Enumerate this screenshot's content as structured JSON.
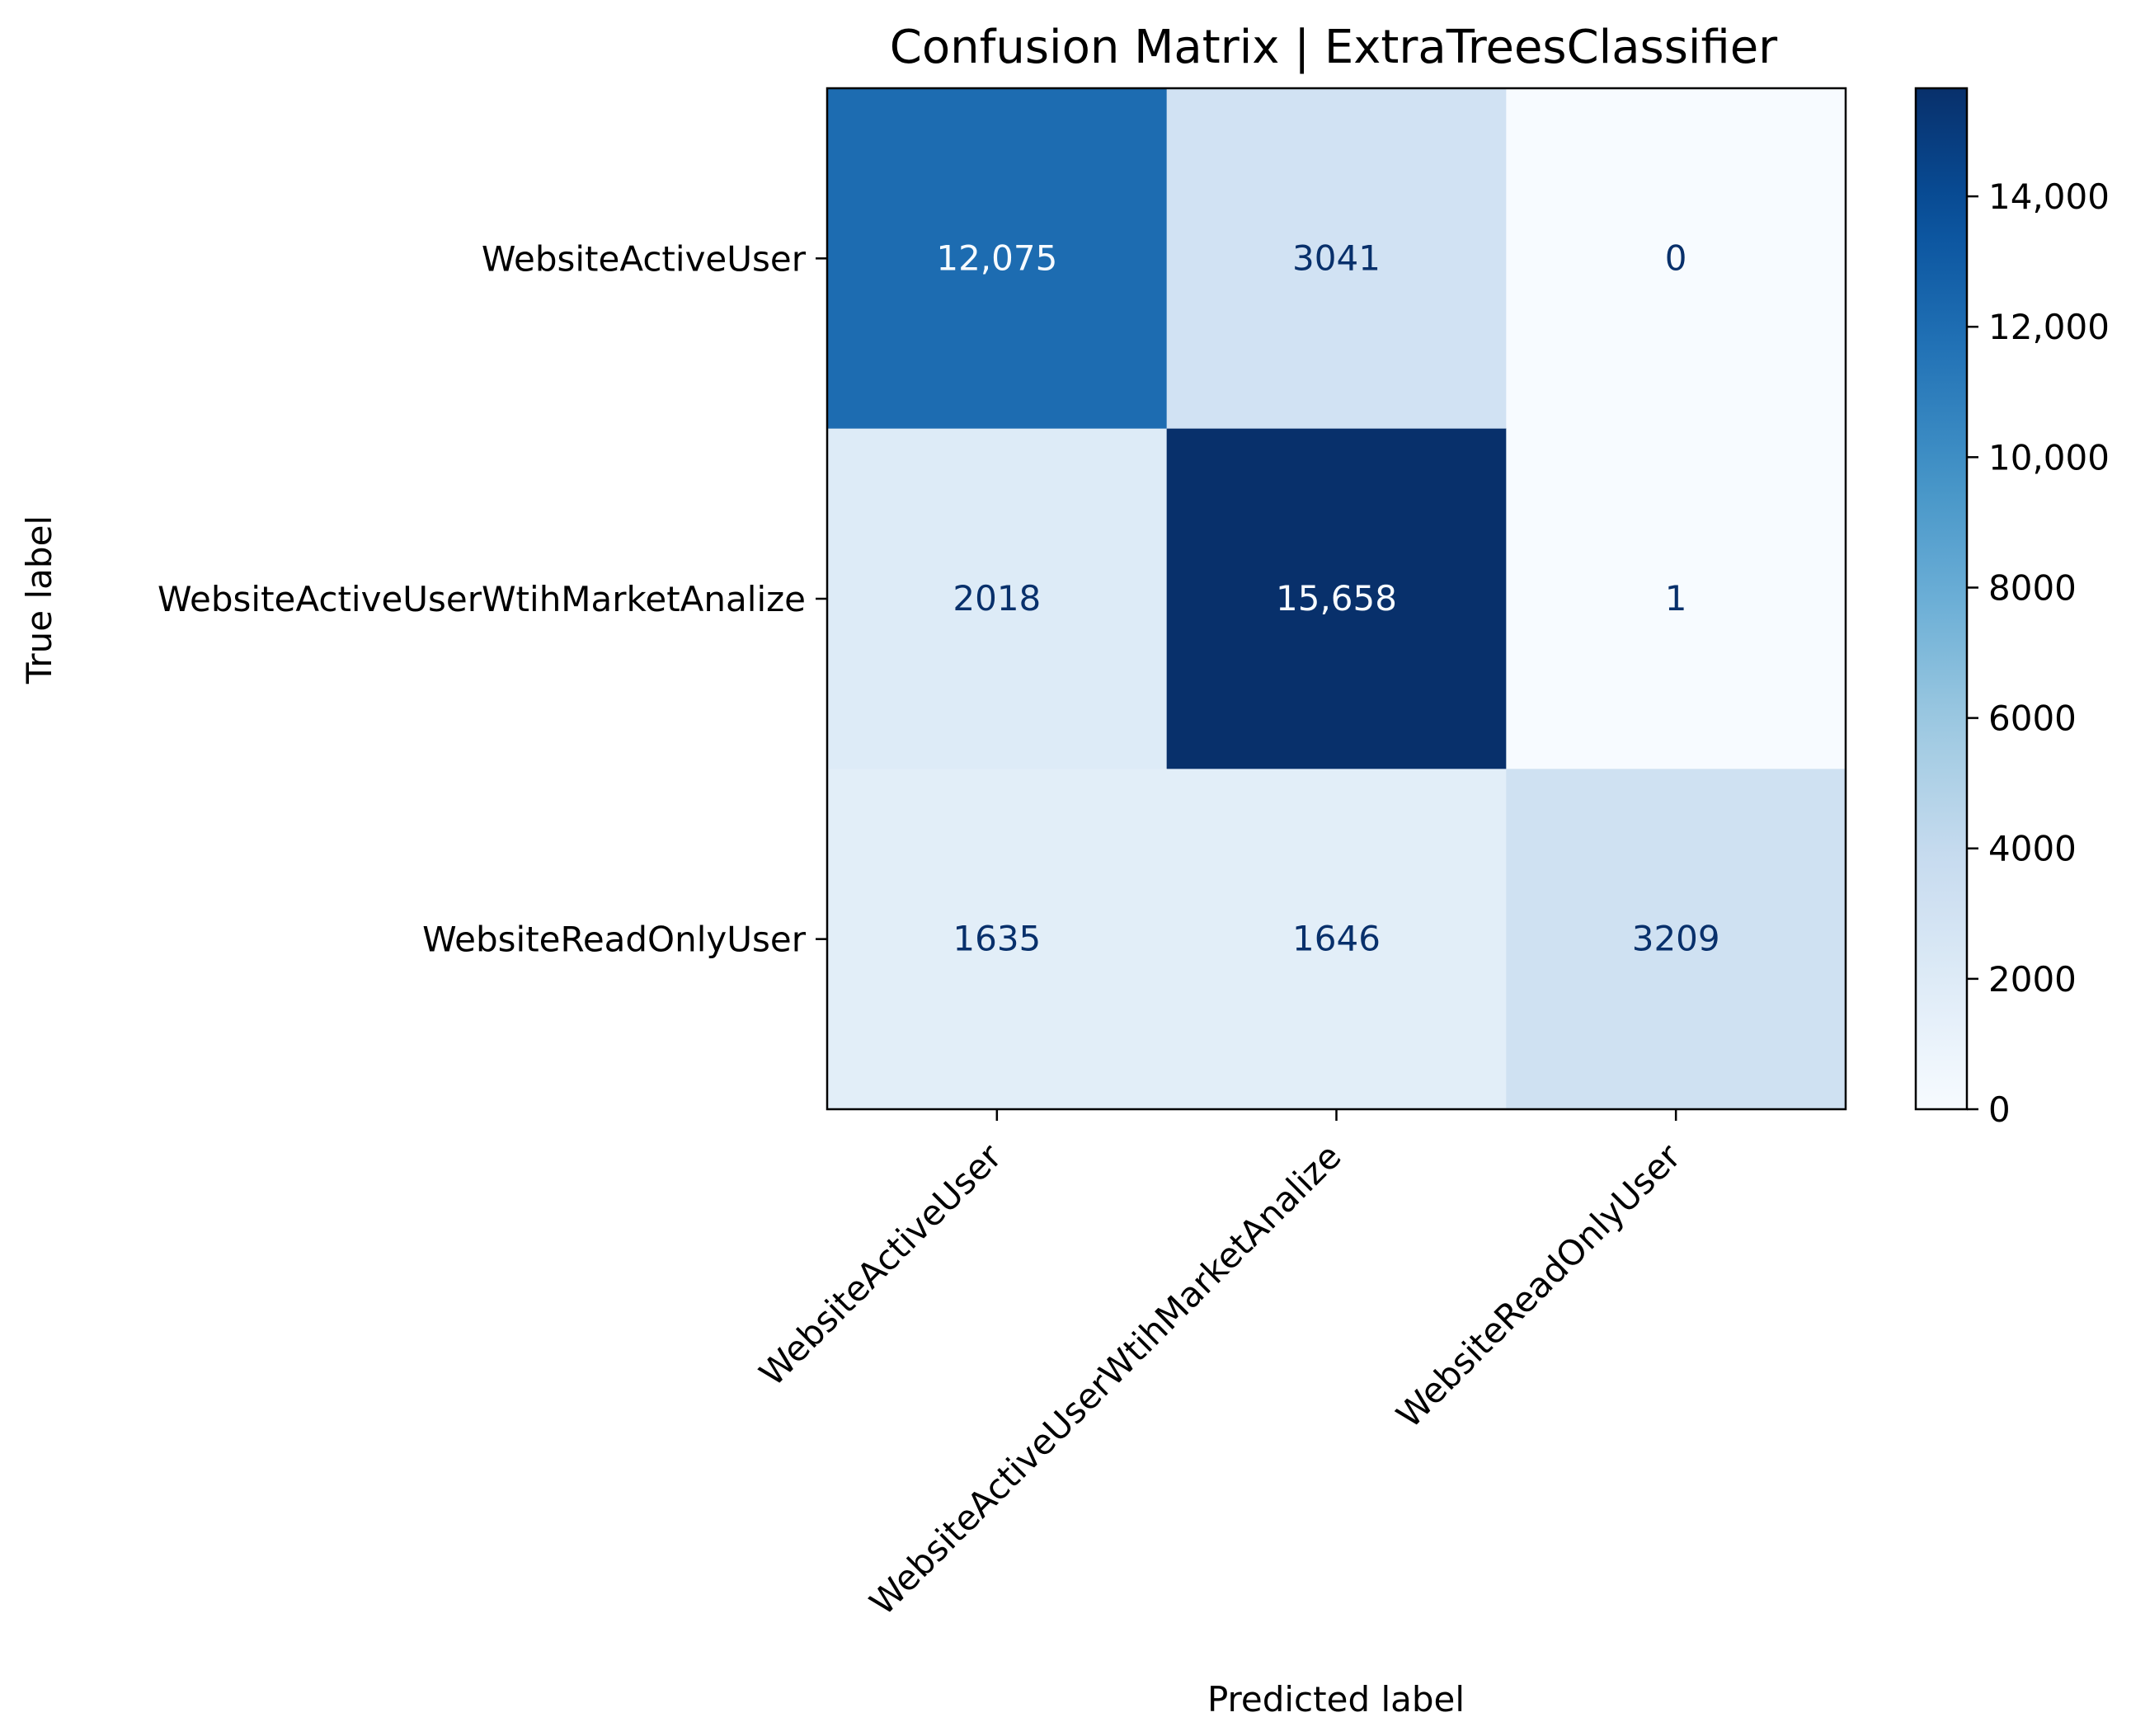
{
  "chart_data": {
    "type": "heatmap",
    "title": "Confusion Matrix | ExtraTreesClassifier",
    "xlabel": "Predicted label",
    "ylabel": "True label",
    "x_categories": [
      "WebsiteActiveUser",
      "WebsiteActiveUserWtihMarketAnalize",
      "WebsiteReadOnlyUser"
    ],
    "y_categories": [
      "WebsiteActiveUser",
      "WebsiteActiveUserWtihMarketAnalize",
      "WebsiteReadOnlyUser"
    ],
    "values": [
      [
        12075,
        3041,
        0
      ],
      [
        2018,
        15658,
        1
      ],
      [
        1635,
        1646,
        3209
      ]
    ],
    "value_labels": [
      [
        "12,075",
        "3041",
        "0"
      ],
      [
        "2018",
        "15,658",
        "1"
      ],
      [
        "1635",
        "1646",
        "3209"
      ]
    ],
    "colormap": "Blues",
    "colorbar": {
      "range": [
        0,
        15658
      ],
      "ticks": [
        0,
        2000,
        4000,
        6000,
        8000,
        10000,
        12000,
        14000
      ],
      "tick_labels": [
        "0",
        "2000",
        "4000",
        "6000",
        "8000",
        "10,000",
        "12,000",
        "14,000"
      ]
    },
    "grid": false,
    "legend": "none"
  }
}
